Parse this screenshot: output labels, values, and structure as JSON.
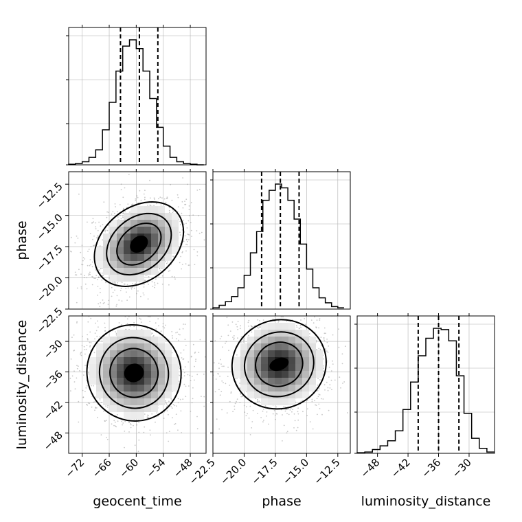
{
  "chart_data": {
    "type": "scatter",
    "variables": [
      "geocent_time",
      "phase",
      "luminosity_distance"
    ],
    "axis_labels": {
      "geocent_time": "geocent_time",
      "phase": "phase",
      "luminosity_distance": "luminosity_distance"
    },
    "ranges": {
      "geocent_time": [
        -75,
        -44.5
      ],
      "phase": [
        -22.5,
        -11.5
      ],
      "luminosity_distance": [
        -52,
        -25
      ]
    },
    "ticks": {
      "geocent_time": [
        -72,
        -66,
        -60,
        -54,
        -48
      ],
      "phase": [
        -22.5,
        -20.0,
        -17.5,
        -15.0,
        -12.5
      ],
      "luminosity_distance": [
        -48,
        -42,
        -36,
        -30
      ]
    },
    "tick_labels": {
      "geocent_time": [
        "−72",
        "−66",
        "−60",
        "−54",
        "−48"
      ],
      "phase": [
        "−22.5",
        "−20.0",
        "−17.5",
        "−15.0",
        "−12.5"
      ],
      "luminosity_distance": [
        "−48",
        "−42",
        "−36",
        "−30"
      ]
    },
    "marginals": {
      "geocent_time": {
        "quantiles": [
          -63.5,
          -59.3,
          -55.2
        ],
        "edges": [
          -75,
          -73.5,
          -72,
          -70.5,
          -69,
          -67.5,
          -66,
          -64.5,
          -63,
          -61.5,
          -60,
          -58.5,
          -57,
          -55.5,
          -54,
          -52.5,
          -51,
          -49.5,
          -48,
          -46.5,
          -45
        ],
        "counts": [
          0.005,
          0.01,
          0.025,
          0.06,
          0.12,
          0.28,
          0.5,
          0.75,
          0.95,
          1.0,
          0.93,
          0.75,
          0.53,
          0.3,
          0.15,
          0.06,
          0.025,
          0.01,
          0.005,
          0.0
        ]
      },
      "phase": {
        "quantiles": [
          -18.6,
          -17.1,
          -15.6
        ],
        "edges": [
          -22.5,
          -22,
          -21.5,
          -21,
          -20.5,
          -20,
          -19.5,
          -19,
          -18.5,
          -18,
          -17.5,
          -17,
          -16.5,
          -16,
          -15.5,
          -15,
          -14.5,
          -14,
          -13.5,
          -13,
          -12.5,
          -12
        ],
        "counts": [
          0.01,
          0.03,
          0.06,
          0.1,
          0.17,
          0.27,
          0.45,
          0.62,
          0.87,
          0.95,
          1.0,
          0.97,
          0.87,
          0.72,
          0.52,
          0.32,
          0.17,
          0.09,
          0.05,
          0.02,
          0.01
        ]
      },
      "luminosity_distance": {
        "quantiles": [
          -40,
          -36,
          -32
        ],
        "edges": [
          -52,
          -50.5,
          -49,
          -47.5,
          -46,
          -44.5,
          -43,
          -41.5,
          -40,
          -38.5,
          -37,
          -35.5,
          -34,
          -32.5,
          -31,
          -29.5,
          -28,
          -26.5,
          -25
        ],
        "counts": [
          0.005,
          0.01,
          0.03,
          0.06,
          0.1,
          0.18,
          0.35,
          0.57,
          0.78,
          0.92,
          1.0,
          0.99,
          0.9,
          0.62,
          0.32,
          0.12,
          0.04,
          0.01
        ]
      }
    },
    "joint": [
      {
        "x": "geocent_time",
        "y": "phase",
        "peak": [
          -59.4,
          -17.3
        ],
        "contour_widths": [
          [
            2.2,
            0.6
          ],
          [
            5.5,
            1.4
          ],
          [
            8.0,
            2.1
          ],
          [
            11.0,
            2.9
          ]
        ],
        "rotation_deg": 40
      },
      {
        "x": "geocent_time",
        "y": "luminosity_distance",
        "peak": [
          -60.5,
          -36.2
        ],
        "contour_widths": [
          [
            2.2,
            1.8
          ],
          [
            5.3,
            4.8
          ],
          [
            7.6,
            7.0
          ],
          [
            10.4,
            9.5
          ]
        ],
        "rotation_deg": 25
      },
      {
        "x": "phase",
        "y": "luminosity_distance",
        "peak": [
          -17.2,
          -34.5
        ],
        "contour_widths": [
          [
            0.8,
            1.2
          ],
          [
            1.9,
            4.3
          ],
          [
            2.8,
            6.3
          ],
          [
            3.8,
            8.7
          ]
        ],
        "rotation_deg": 20
      }
    ],
    "grid": true,
    "legend": "none"
  }
}
